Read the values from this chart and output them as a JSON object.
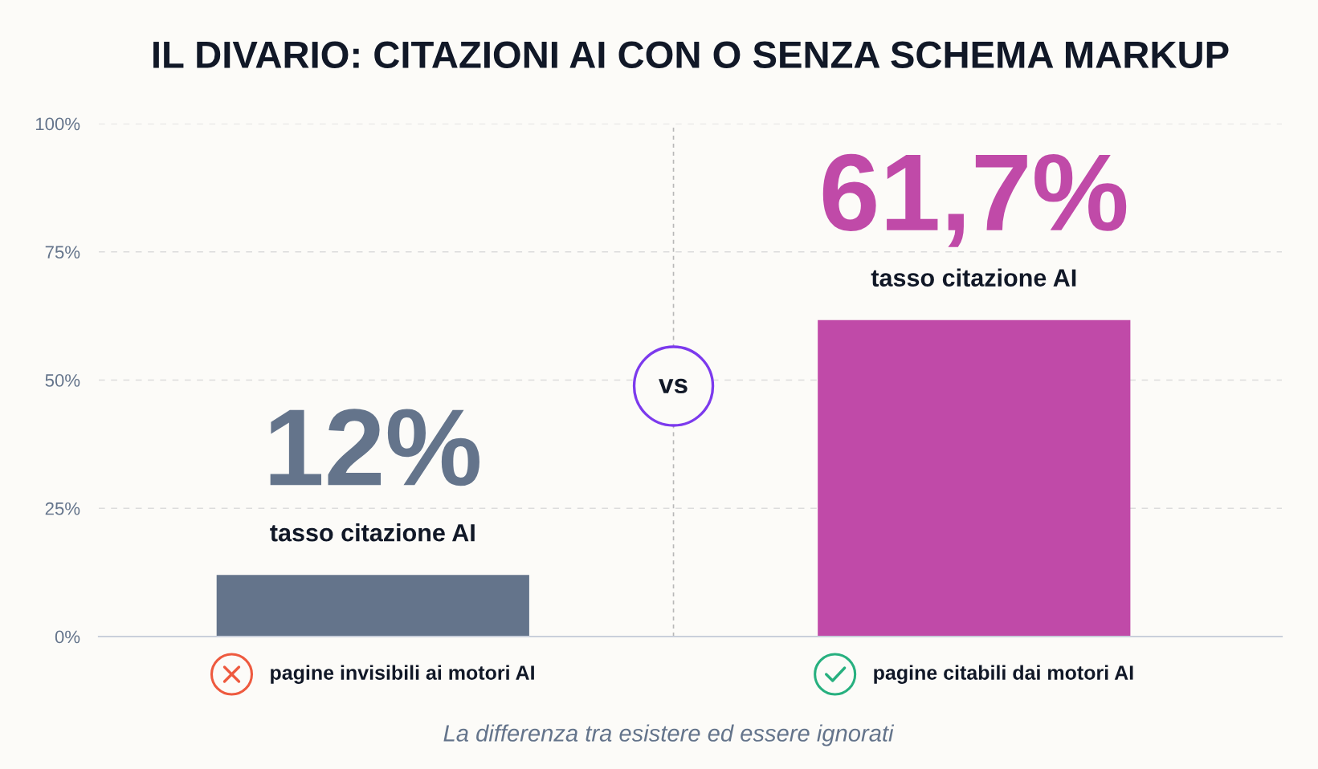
{
  "chart_data": {
    "type": "bar",
    "title": "IL DIVARIO: CITAZIONI AI CON O SENZA SCHEMA MARKUP",
    "categories": [
      "pagine invisibili ai motori AI",
      "pagine citabili dai motori AI"
    ],
    "values": [
      12,
      61.7
    ],
    "colors": [
      "#64748b",
      "#c04aa8"
    ],
    "value_labels": [
      "12%",
      "61,7%"
    ],
    "ylim": [
      0,
      100
    ],
    "yticks": [
      {
        "value": 0,
        "label": "0%"
      },
      {
        "value": 25,
        "label": "25%"
      },
      {
        "value": 50,
        "label": "50%"
      },
      {
        "value": 75,
        "label": "75%"
      },
      {
        "value": 100,
        "label": "100%"
      }
    ],
    "grid": "y",
    "annotations": [
      {
        "text": "tasso citazione AI",
        "x": "pagine invisibili ai motori AI",
        "y": 12
      },
      {
        "text": "tasso citazione AI",
        "x": "pagine citabili dai motori AI",
        "y": 61.7
      },
      "vs",
      "La differenza tra esistere ed essere ignorati"
    ]
  }
}
